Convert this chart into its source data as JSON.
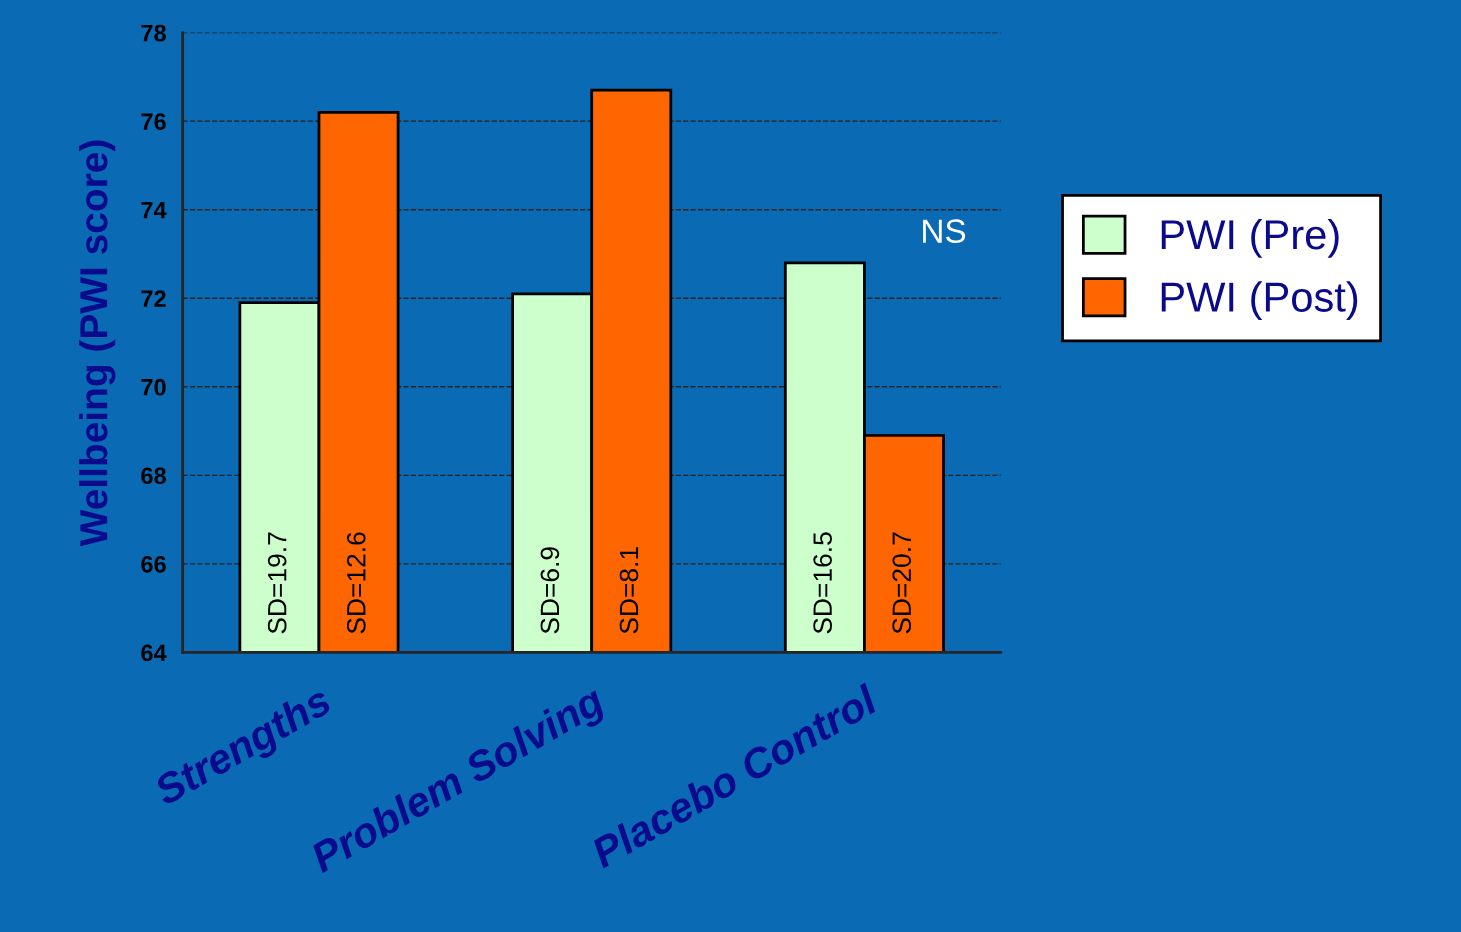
{
  "chart_data": {
    "type": "bar",
    "ylabel": "Wellbeing (PWI score)",
    "categories": [
      "Strengths",
      "Problem Solving",
      "Placebo Control"
    ],
    "series": [
      {
        "name": "PWI (Pre)",
        "color": "#ccffcc",
        "values": [
          71.9,
          72.1,
          72.8
        ]
      },
      {
        "name": "PWI (Post)",
        "color": "#ff6600",
        "values": [
          76.2,
          76.7,
          68.9
        ]
      }
    ],
    "ylim": [
      64,
      78
    ],
    "yticks": [
      64,
      66,
      68,
      70,
      72,
      74,
      76,
      78
    ],
    "grid": "y",
    "legend": "right",
    "annotations": [
      "SD=19.7",
      "SD=12.6",
      "SD=6.9",
      "SD=8.1",
      "SD=16.5",
      "SD=20.7",
      "NS"
    ]
  }
}
